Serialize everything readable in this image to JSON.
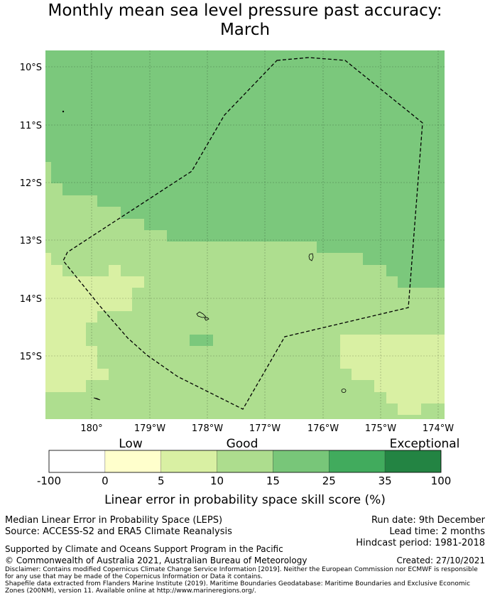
{
  "title": {
    "line1": "Monthly mean sea level pressure past accuracy:",
    "line2": "March"
  },
  "map": {
    "lat_labels": [
      "10°S",
      "11°S",
      "12°S",
      "13°S",
      "14°S",
      "15°S"
    ],
    "lon_labels": [
      "180°",
      "179°W",
      "178°W",
      "177°W",
      "176°W",
      "175°W",
      "174°W"
    ],
    "colors": {
      "exceptional_light": "#7bc87c",
      "good": "#aede8f",
      "low_mid": "#d9f0a3",
      "boundary_line": "#000000"
    }
  },
  "colorbar": {
    "categories": [
      "Low",
      "Good",
      "Exceptional"
    ],
    "ticks": [
      "-100",
      "0",
      "5",
      "10",
      "15",
      "25",
      "35",
      "100"
    ],
    "colors": [
      "#ffffff",
      "#ffffcc",
      "#d9f0a3",
      "#addd8e",
      "#78c679",
      "#41ab5d",
      "#238443"
    ],
    "label": "Linear error in probability space skill score (%)"
  },
  "footer": {
    "method": "Median Linear Error in Probability Space (LEPS)",
    "source": "Source: ACCESS-S2 and ERA5 Climate Reanalysis",
    "run_date": "Run date: 9th December",
    "lead_time": "Lead time: 2 months",
    "hindcast": "Hindcast period: 1981-2018",
    "support": "Supported by Climate and Oceans Support Program in the Pacific",
    "copyright": "© Commonwealth of Australia 2021, Australian Bureau of Meteorology",
    "created": "Created: 27/10/2021",
    "disclaimer1": "Disclaimer: Contains modified Copernicus Climate Change Service Information [2019]. Neither the European Commission nor ECMWF is responsible for any use that may be made of the Copernicus Information or Data it contains.",
    "disclaimer2": "Shapefile data extracted from Flanders Marine Institute (2019). Maritime Boundaries Geodatabase: Maritime Boundaries and Exclusive Economic Zones (200NM), version 11. Available online at http://www.marineregions.org/."
  }
}
